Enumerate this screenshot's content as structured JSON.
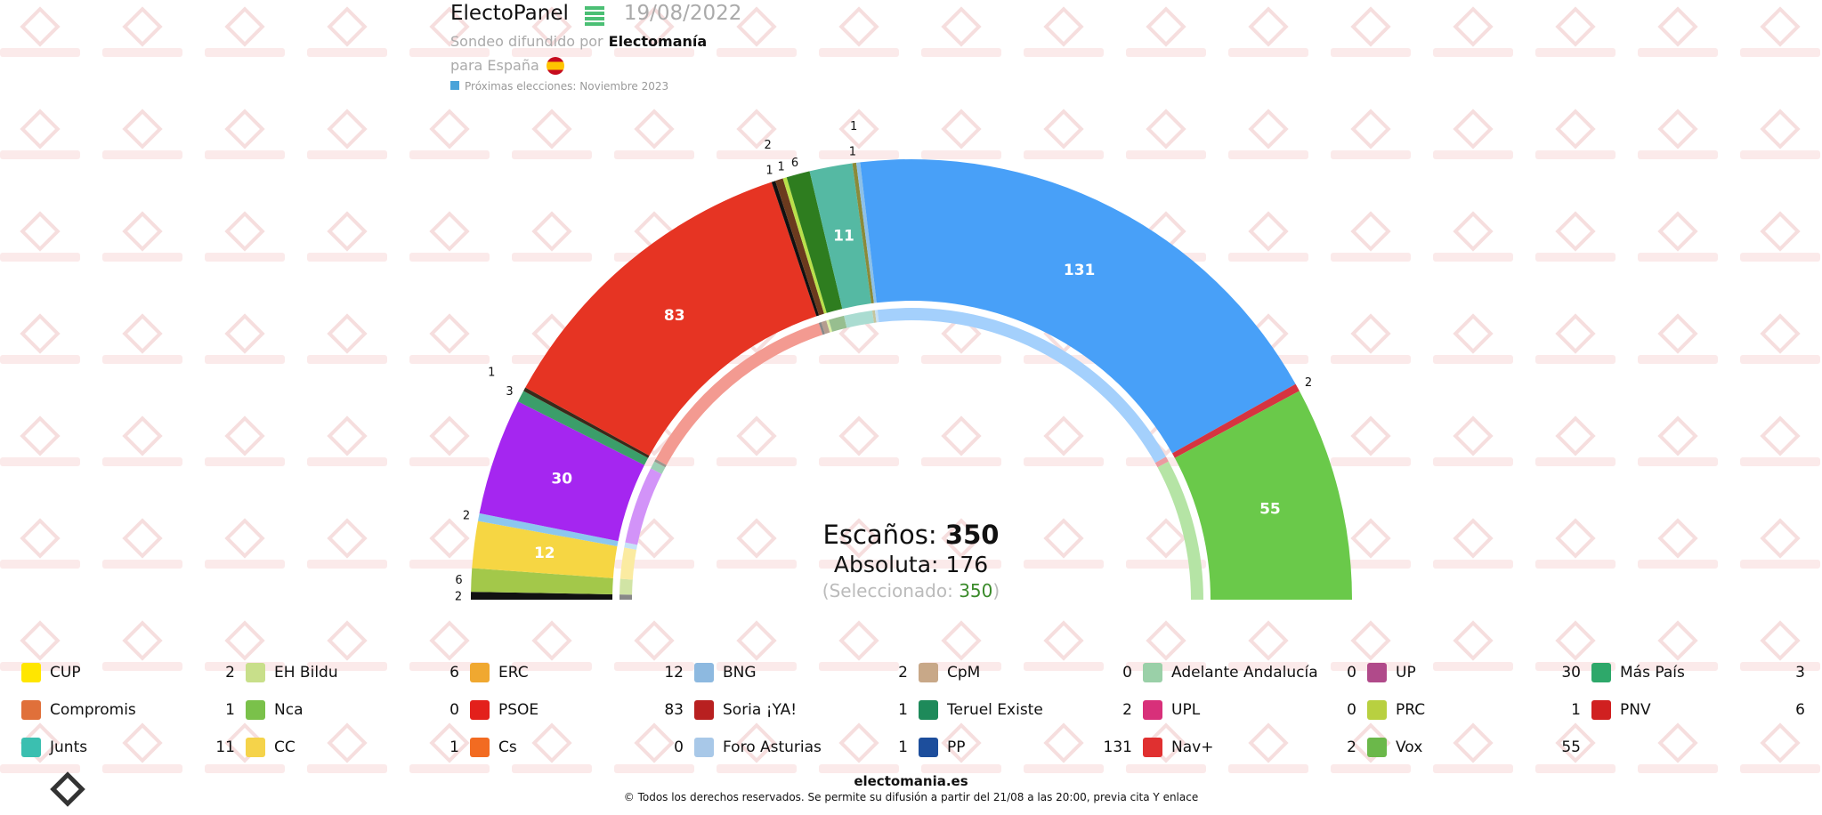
{
  "header": {
    "title": "ElectoPanel",
    "date": "19/08/2022",
    "sondeo_label": "Sondeo difundido por",
    "source": "Electomanía",
    "region": "para España",
    "next_elections": "Próximas elecciones: Noviembre 2023"
  },
  "watermark": "Electomania",
  "summary": {
    "seats_label": "Escaños:",
    "seats": "350",
    "majority_label": "Absoluta:",
    "majority": "176",
    "selected_prefix": "(Seleccionado:",
    "selected": "350",
    "selected_suffix": ")"
  },
  "chart_data": {
    "type": "hemicycle",
    "total": 350,
    "segments": [
      {
        "party": "CUP",
        "seats": 2,
        "color": "#111111"
      },
      {
        "party": "EH Bildu",
        "seats": 6,
        "color": "#a3c84a"
      },
      {
        "party": "ERC",
        "seats": 12,
        "color": "#f6d643"
      },
      {
        "party": "BNG",
        "seats": 2,
        "color": "#8cc7ee"
      },
      {
        "party": "UP",
        "seats": 30,
        "color": "#a526f0"
      },
      {
        "party": "Más País",
        "seats": 3,
        "color": "#3b9e6a"
      },
      {
        "party": "Compromis",
        "seats": 1,
        "color": "#3a2a1a"
      },
      {
        "party": "PSOE",
        "seats": 83,
        "color": "#e63423"
      },
      {
        "party": "Soria ¡YA!",
        "seats": 1,
        "color": "#111111"
      },
      {
        "party": "Teruel Existe",
        "seats": 2,
        "color": "#6b3a1e"
      },
      {
        "party": "Foro Asturias",
        "seats": 1,
        "color": "#b9e04a"
      },
      {
        "party": "PNV",
        "seats": 6,
        "color": "#2e7d1f"
      },
      {
        "party": "Junts",
        "seats": 11,
        "color": "#55b9a3"
      },
      {
        "party": "PRC",
        "seats": 1,
        "color": "#8a8a3a"
      },
      {
        "party": "CC",
        "seats": 1,
        "color": "#8cc0e8"
      },
      {
        "party": "PP",
        "seats": 131,
        "color": "#48a0f8"
      },
      {
        "party": "Nav+",
        "seats": 2,
        "color": "#d63440"
      },
      {
        "party": "Vox",
        "seats": 55,
        "color": "#6ac94a"
      }
    ]
  },
  "legend": [
    [
      {
        "name": "CUP",
        "seats": "2",
        "color": "#ffe600"
      },
      {
        "name": "Compromis",
        "seats": "1",
        "color": "#e0703a"
      },
      {
        "name": "Junts",
        "seats": "11",
        "color": "#3bbfb0"
      }
    ],
    [
      {
        "name": "EH Bildu",
        "seats": "6",
        "color": "#c8df8a"
      },
      {
        "name": "Nca",
        "seats": "0",
        "color": "#7ac14a"
      },
      {
        "name": "CC",
        "seats": "1",
        "color": "#f5d34a"
      }
    ],
    [
      {
        "name": "ERC",
        "seats": "12",
        "color": "#f0a830"
      },
      {
        "name": "PSOE",
        "seats": "83",
        "color": "#e3201b"
      },
      {
        "name": "Cs",
        "seats": "0",
        "color": "#f26b21"
      }
    ],
    [
      {
        "name": "BNG",
        "seats": "2",
        "color": "#8db9e0"
      },
      {
        "name": "Soria ¡YA!",
        "seats": "1",
        "color": "#b82020"
      },
      {
        "name": "Foro Asturias",
        "seats": "1",
        "color": "#a8c8e8"
      }
    ],
    [
      {
        "name": "CpM",
        "seats": "0",
        "color": "#c8a888"
      },
      {
        "name": "Teruel Existe",
        "seats": "2",
        "color": "#1e8a5a"
      },
      {
        "name": "PP",
        "seats": "131",
        "color": "#1d4e9c"
      }
    ],
    [
      {
        "name": "Adelante Andalucía",
        "seats": "0",
        "color": "#9ad0a8"
      },
      {
        "name": "UPL",
        "seats": "0",
        "color": "#d8307a"
      },
      {
        "name": "Nav+",
        "seats": "2",
        "color": "#e03030"
      }
    ],
    [
      {
        "name": "UP",
        "seats": "30",
        "color": "#b04a8a"
      },
      {
        "name": "PRC",
        "seats": "1",
        "color": "#b8d040"
      },
      {
        "name": "Vox",
        "seats": "55",
        "color": "#6bb84a"
      }
    ],
    [
      {
        "name": "Más País",
        "seats": "3",
        "color": "#2ea86a"
      },
      {
        "name": "PNV",
        "seats": "6",
        "color": "#d02020"
      }
    ]
  ],
  "footer": {
    "site": "electomania.es",
    "copyright": "© Todos los derechos reservados. Se permite su difusión a partir del 21/08 a las 20:00, previa cita Y enlace"
  }
}
